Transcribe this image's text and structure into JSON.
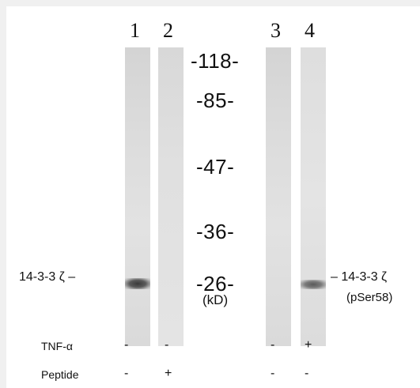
{
  "lanes": [
    "1",
    "2",
    "3",
    "4"
  ],
  "markers": [
    "-118-",
    "-85-",
    "-47-",
    "-36-",
    "-26-"
  ],
  "unit": "(kD)",
  "protein_left": "14-3-3 ζ –",
  "protein_right": "– 14-3-3 ζ",
  "protein_right_sub": "(pSer58)",
  "conditions": {
    "tnf": {
      "label": "TNF-α",
      "signs": [
        "-",
        "-",
        "-",
        "+"
      ]
    },
    "peptide": {
      "label": "Peptide",
      "signs": [
        "-",
        "+",
        "-",
        "-"
      ]
    }
  }
}
